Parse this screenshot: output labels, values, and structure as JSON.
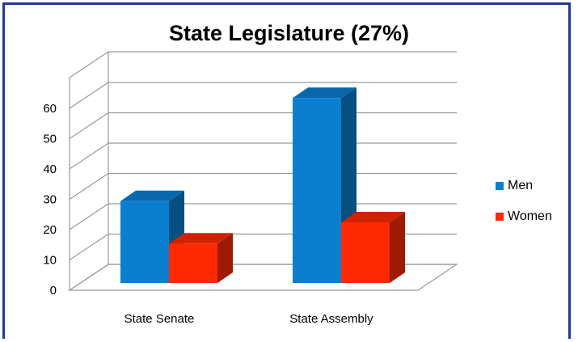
{
  "chart_data": {
    "type": "bar",
    "title": "State Legislature (27%)",
    "categories": [
      "State Senate",
      "State Assembly"
    ],
    "series": [
      {
        "name": "Men",
        "values": [
          27,
          61
        ],
        "color": "#0a7fd0"
      },
      {
        "name": "Women",
        "values": [
          13,
          20
        ],
        "color": "#ff2a00"
      }
    ],
    "ylim": [
      0,
      60
    ],
    "yticks": [
      0,
      10,
      20,
      30,
      40,
      50,
      60
    ],
    "grid": true,
    "legend": "right",
    "style": "3d"
  }
}
